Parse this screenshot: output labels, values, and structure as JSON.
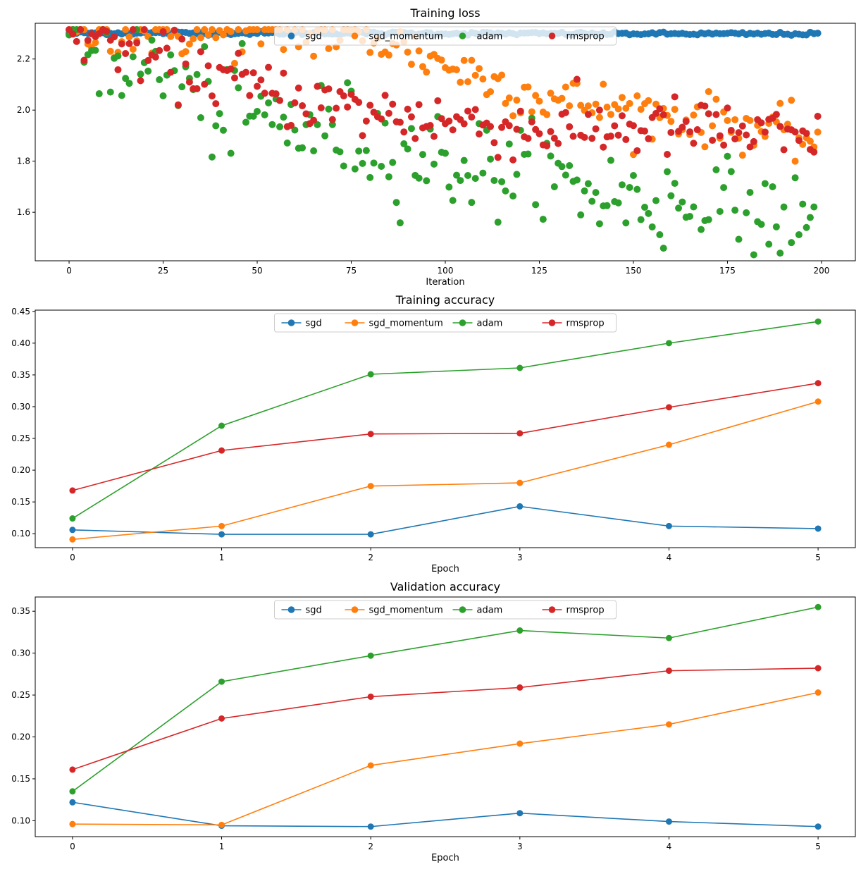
{
  "chart_data": [
    {
      "type": "scatter",
      "title": "Training loss",
      "xlabel": "Iteration",
      "ylabel": "",
      "xlim": [
        -9,
        209
      ],
      "ylim": [
        1.41,
        2.34
      ],
      "xticks": [
        0,
        25,
        50,
        75,
        100,
        125,
        150,
        175,
        200
      ],
      "yticks": [
        1.6,
        1.8,
        2.0,
        2.2
      ],
      "ytick_decimals": 1,
      "legend": "upper center",
      "legend_marker_only": true,
      "grid": false,
      "points_per_series": 200,
      "series": [
        {
          "name": "sgd",
          "color": "#1f77b4",
          "trend": [
            [
              0,
              2.302
            ],
            [
              200,
              2.298
            ]
          ],
          "noise": 0.003
        },
        {
          "name": "sgd_momentum",
          "color": "#ff7f0e",
          "trend": [
            [
              0,
              2.302
            ],
            [
              70,
              2.295
            ],
            [
              85,
              2.27
            ],
            [
              100,
              2.18
            ],
            [
              125,
              2.05
            ],
            [
              150,
              2.0
            ],
            [
              175,
              1.95
            ],
            [
              200,
              1.88
            ]
          ],
          "noise": 0.05
        },
        {
          "name": "adam",
          "color": "#2ca02c",
          "trend": [
            [
              0,
              2.3
            ],
            [
              10,
              2.23
            ],
            [
              25,
              2.15
            ],
            [
              40,
              2.0
            ],
            [
              75,
              1.9
            ],
            [
              100,
              1.8
            ],
            [
              125,
              1.73
            ],
            [
              150,
              1.65
            ],
            [
              175,
              1.6
            ],
            [
              200,
              1.52
            ]
          ],
          "noise": 0.1
        },
        {
          "name": "rmsprop",
          "color": "#d62728",
          "trend": [
            [
              0,
              2.3
            ],
            [
              10,
              2.28
            ],
            [
              25,
              2.19
            ],
            [
              40,
              2.13
            ],
            [
              50,
              2.08
            ],
            [
              75,
              2.0
            ],
            [
              100,
              1.96
            ],
            [
              125,
              1.92
            ],
            [
              150,
              1.93
            ],
            [
              175,
              1.92
            ],
            [
              200,
              1.86
            ]
          ],
          "noise": 0.06
        }
      ]
    },
    {
      "type": "line",
      "title": "Training accuracy",
      "xlabel": "Epoch",
      "ylabel": "",
      "x": [
        0,
        1,
        2,
        3,
        4,
        5
      ],
      "xlim": [
        -0.25,
        5.25
      ],
      "ylim": [
        0.078,
        0.452
      ],
      "xticks": [
        0,
        1,
        2,
        3,
        4,
        5
      ],
      "yticks": [
        0.1,
        0.15,
        0.2,
        0.25,
        0.3,
        0.35,
        0.4,
        0.45
      ],
      "ytick_decimals": 2,
      "legend": "upper center",
      "grid": false,
      "series": [
        {
          "name": "sgd",
          "color": "#1f77b4",
          "values": [
            0.106,
            0.099,
            0.099,
            0.143,
            0.112,
            0.108
          ]
        },
        {
          "name": "sgd_momentum",
          "color": "#ff7f0e",
          "values": [
            0.091,
            0.112,
            0.175,
            0.18,
            0.24,
            0.308
          ]
        },
        {
          "name": "adam",
          "color": "#2ca02c",
          "values": [
            0.124,
            0.27,
            0.351,
            0.361,
            0.4,
            0.434
          ]
        },
        {
          "name": "rmsprop",
          "color": "#d62728",
          "values": [
            0.168,
            0.231,
            0.257,
            0.258,
            0.299,
            0.337
          ]
        }
      ]
    },
    {
      "type": "line",
      "title": "Validation accuracy",
      "xlabel": "Epoch",
      "ylabel": "",
      "x": [
        0,
        1,
        2,
        3,
        4,
        5
      ],
      "xlim": [
        -0.25,
        5.25
      ],
      "ylim": [
        0.081,
        0.367
      ],
      "xticks": [
        0,
        1,
        2,
        3,
        4,
        5
      ],
      "yticks": [
        0.1,
        0.15,
        0.2,
        0.25,
        0.3,
        0.35
      ],
      "ytick_decimals": 2,
      "legend": "upper center",
      "grid": false,
      "series": [
        {
          "name": "sgd",
          "color": "#1f77b4",
          "values": [
            0.122,
            0.094,
            0.093,
            0.109,
            0.099,
            0.093
          ]
        },
        {
          "name": "sgd_momentum",
          "color": "#ff7f0e",
          "values": [
            0.096,
            0.095,
            0.166,
            0.192,
            0.215,
            0.253
          ]
        },
        {
          "name": "adam",
          "color": "#2ca02c",
          "values": [
            0.135,
            0.266,
            0.297,
            0.327,
            0.318,
            0.355
          ]
        },
        {
          "name": "rmsprop",
          "color": "#d62728",
          "values": [
            0.161,
            0.222,
            0.248,
            0.259,
            0.279,
            0.282
          ]
        }
      ]
    }
  ]
}
